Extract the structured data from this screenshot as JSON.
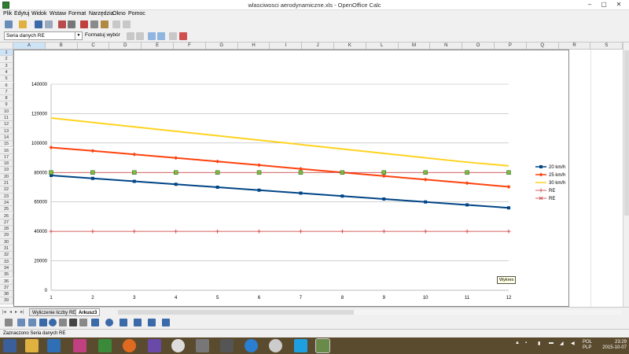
{
  "window": {
    "title": "wlasciwosci aerodynamiczne.xls - OpenOffice Calc",
    "minimize": "–",
    "maximize": "▢",
    "close": "✕"
  },
  "menu": [
    "Plik",
    "Edytuj",
    "Widok",
    "Wstaw",
    "Format",
    "Narzędzia",
    "Okno",
    "Pomoc"
  ],
  "chart_toolbar": {
    "element_selector": "Seria danych RE",
    "format_selection": "Formatuj wybór"
  },
  "columns": [
    "A",
    "B",
    "C",
    "D",
    "E",
    "F",
    "G",
    "H",
    "I",
    "J",
    "K",
    "L",
    "M",
    "N",
    "O",
    "P",
    "Q",
    "R",
    "S"
  ],
  "rows": [
    "1",
    "2",
    "3",
    "4",
    "5",
    "6",
    "7",
    "8",
    "9",
    "10",
    "11",
    "12",
    "13",
    "14",
    "15",
    "16",
    "17",
    "18",
    "19",
    "20",
    "21",
    "22",
    "23",
    "24",
    "25",
    "26",
    "27",
    "28",
    "29",
    "30",
    "31",
    "32",
    "33",
    "34",
    "35",
    "36",
    "37",
    "38",
    "39"
  ],
  "sheet_tabs": [
    "Wyliczenie liczby RE",
    "Arkusz3"
  ],
  "active_tab": "Arkusz3",
  "status_text": "Zaznaczono Seria danych RE",
  "tooltip": "Wykres",
  "tray": {
    "lang1": "POL",
    "lang2": "PLP",
    "time": "23:29",
    "date": "2015-10-07"
  },
  "taskbar_icons": [
    "start-icon",
    "file-explorer-icon",
    "photo-viewer-icon",
    "paint-icon",
    "calculator-icon",
    "firefox-icon",
    "settings-icon",
    "hp-icon",
    "media-icon",
    "video-icon",
    "internet-explorer-icon",
    "chrome-icon",
    "skype-icon",
    "calc-app-icon"
  ],
  "chart_data": {
    "type": "line",
    "x": [
      1,
      2,
      3,
      4,
      5,
      6,
      7,
      8,
      9,
      10,
      11,
      12
    ],
    "ylim": [
      0,
      140000
    ],
    "yticks": [
      0,
      20000,
      40000,
      60000,
      80000,
      100000,
      120000,
      140000
    ],
    "grid": true,
    "legend_position": "right",
    "series": [
      {
        "name": "20 km/h",
        "color": "#004586",
        "marker": "square",
        "values": [
          78000,
          76000,
          74000,
          72000,
          70000,
          68000,
          66000,
          64000,
          62000,
          60000,
          58000,
          56000
        ]
      },
      {
        "name": "25 km/h",
        "color": "#ff420e",
        "marker": "diamond",
        "values": [
          97000,
          94700,
          92300,
          89900,
          87500,
          85000,
          82500,
          80000,
          77600,
          75200,
          72800,
          70300
        ]
      },
      {
        "name": "30 km/h",
        "color": "#ffd320",
        "marker": "none",
        "values": [
          117000,
          114000,
          111000,
          108000,
          105000,
          102000,
          99000,
          96000,
          93000,
          90000,
          87000,
          84500
        ]
      },
      {
        "name": "RE",
        "color": "#cc3333",
        "marker": "plus",
        "values": [
          40000,
          40000,
          40000,
          40000,
          40000,
          40000,
          40000,
          40000,
          40000,
          40000,
          40000,
          40000
        ]
      },
      {
        "name": "RE",
        "color": "#cc3333",
        "marker": "x",
        "values": [
          80000,
          80000,
          80000,
          80000,
          80000,
          80000,
          80000,
          80000,
          80000,
          80000,
          80000,
          80000
        ]
      }
    ]
  }
}
